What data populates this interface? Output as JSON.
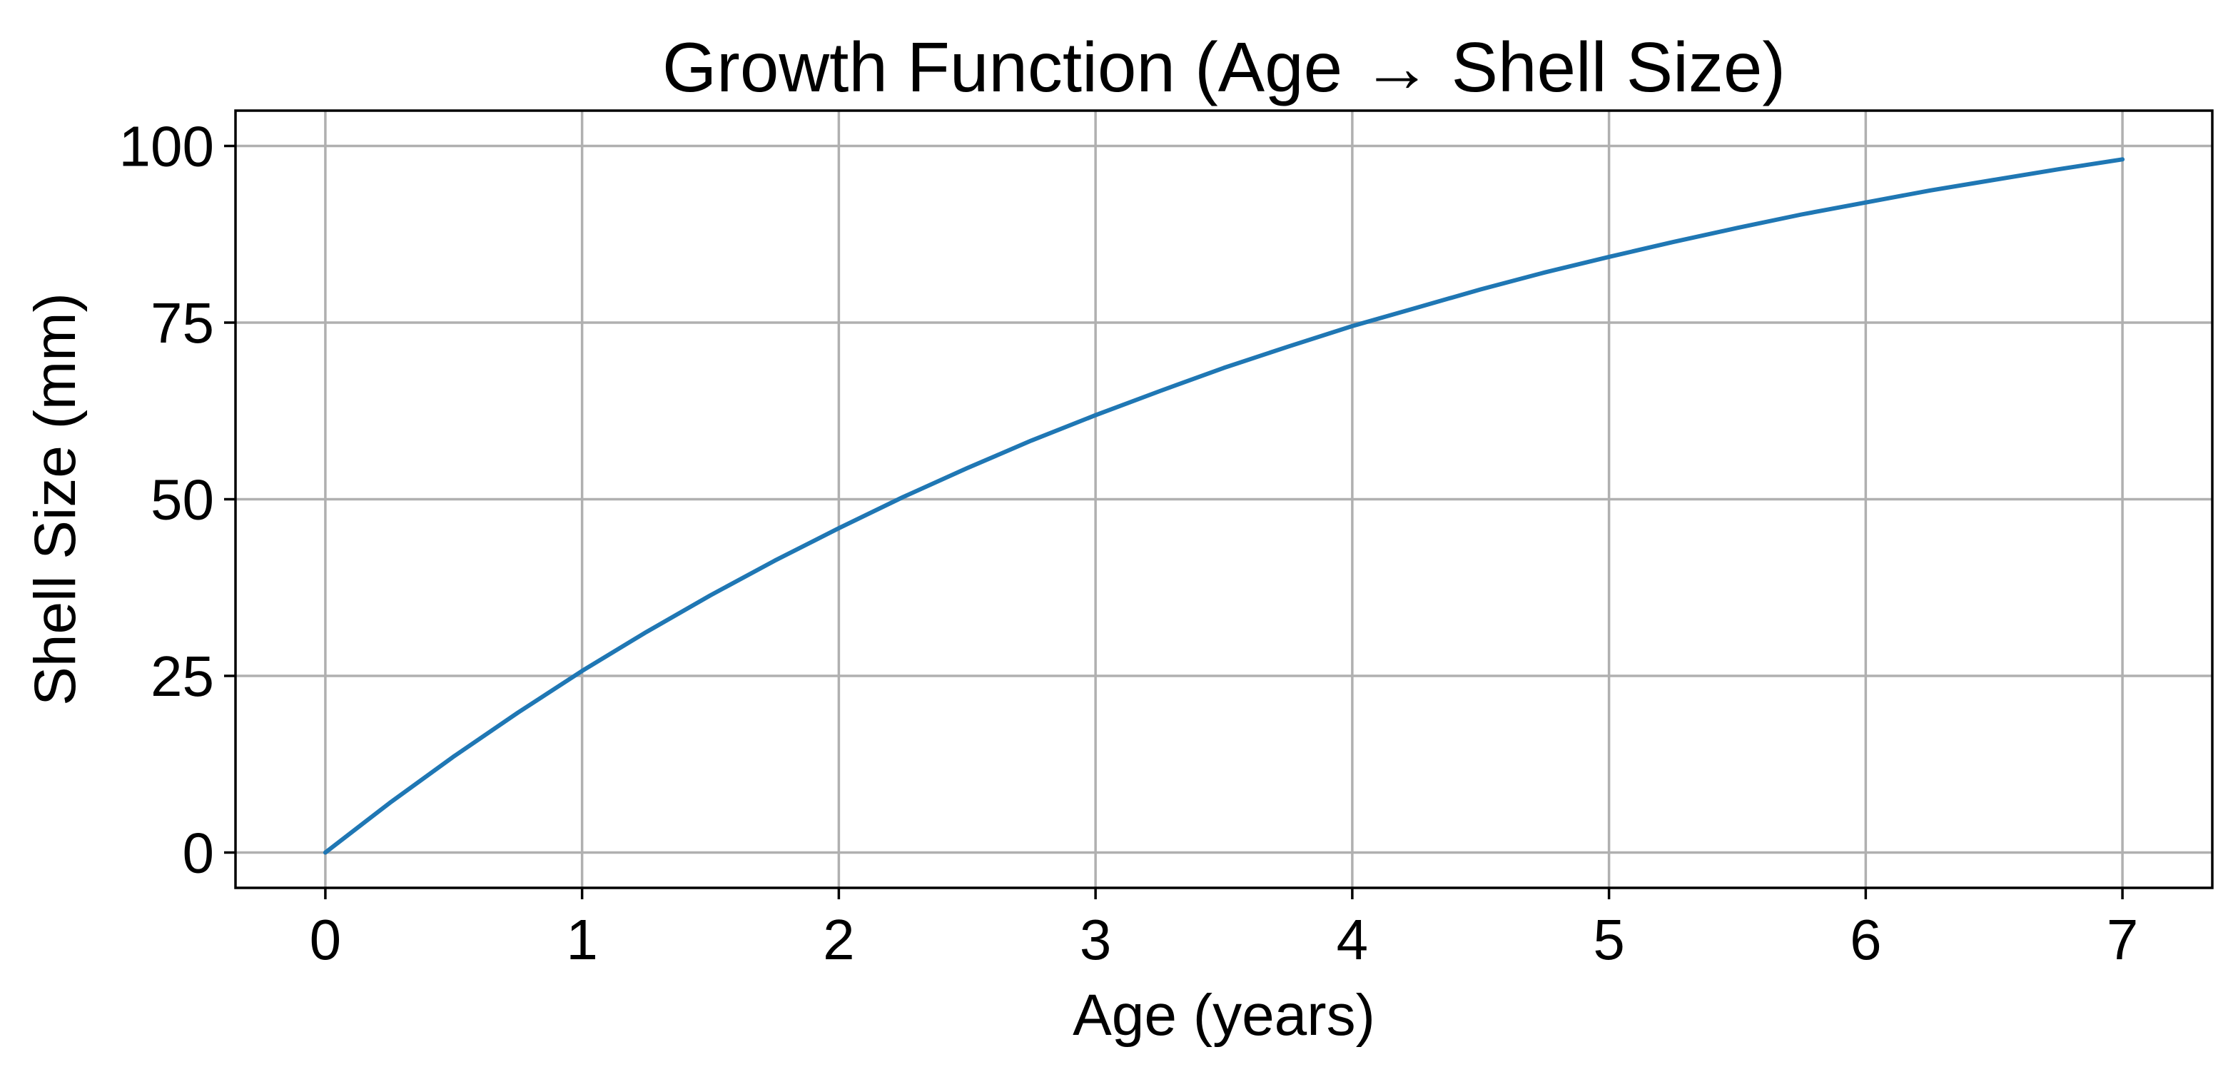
{
  "chart_data": {
    "type": "line",
    "title": "Growth Function (Age → Shell Size)",
    "xlabel": "Age (years)",
    "ylabel": "Shell Size (mm)",
    "xlim": [
      -0.35,
      7.35
    ],
    "ylim": [
      -5,
      105
    ],
    "x_ticks": [
      0,
      1,
      2,
      3,
      4,
      5,
      6,
      7
    ],
    "y_ticks": [
      0,
      25,
      50,
      75,
      100
    ],
    "grid": true,
    "legend": "none",
    "series": [
      {
        "color": "#1f77b4",
        "x": [
          0,
          0.25,
          0.5,
          0.75,
          1,
          1.25,
          1.5,
          1.75,
          2,
          2.25,
          2.5,
          2.75,
          3,
          3.25,
          3.5,
          3.75,
          4,
          4.25,
          4.5,
          4.75,
          5,
          5.25,
          5.5,
          5.75,
          6,
          6.25,
          6.5,
          6.75,
          7
        ],
        "y": [
          0,
          7.0,
          13.6,
          19.8,
          25.7,
          31.2,
          36.4,
          41.3,
          45.9,
          50.3,
          54.4,
          58.3,
          61.9,
          65.3,
          68.6,
          71.6,
          74.5,
          77.1,
          79.7,
          82.1,
          84.3,
          86.4,
          88.4,
          90.3,
          92.0,
          93.7,
          95.2,
          96.7,
          98.1
        ]
      }
    ]
  }
}
